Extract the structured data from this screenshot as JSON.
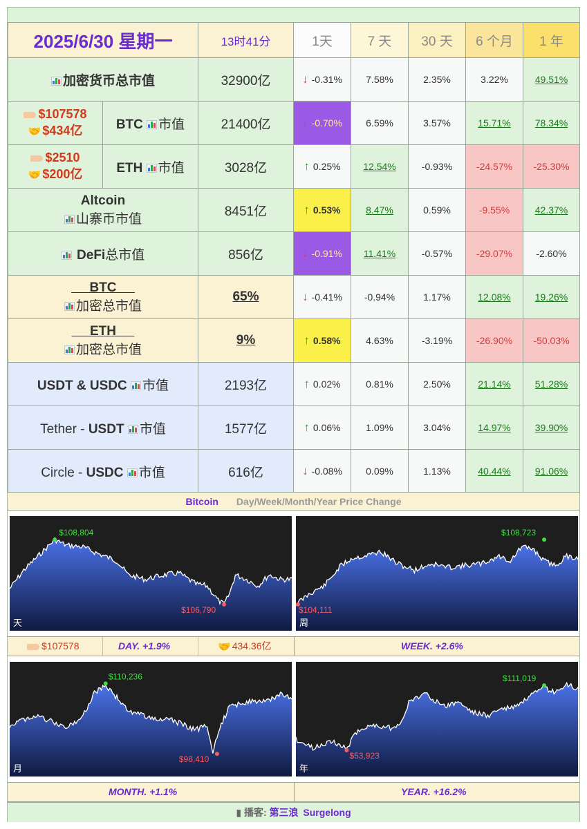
{
  "header": {
    "date": "2025/6/30 星期一",
    "time": "13时41分",
    "periods": [
      "1天",
      "7 天",
      "30 天",
      "6 个月",
      "1 年"
    ]
  },
  "rows": [
    {
      "id": "total",
      "label": "加密货币总市值",
      "mcap": "32900亿",
      "changes": [
        "-0.31%",
        "7.58%",
        "2.35%",
        "3.22%",
        "49.51%"
      ]
    },
    {
      "id": "btc",
      "price": "$107578",
      "volume": "$434亿",
      "label_coin": "BTC",
      "label_suffix": "市值",
      "mcap": "21400亿",
      "changes": [
        "-0.70%",
        "6.59%",
        "3.57%",
        "15.71%",
        "78.34%"
      ]
    },
    {
      "id": "eth",
      "price": "$2510",
      "volume": "$200亿",
      "label_coin": "ETH",
      "label_suffix": "市值",
      "mcap": "3028亿",
      "changes": [
        "0.25%",
        "12.54%",
        "-0.93%",
        "-24.57%",
        "-25.30%"
      ]
    },
    {
      "id": "alt",
      "label_top": "Altcoin",
      "label": "山寨币市值",
      "mcap": "8451亿",
      "changes": [
        "0.53%",
        "8.47%",
        "0.59%",
        "-9.55%",
        "42.37%"
      ]
    },
    {
      "id": "defi",
      "label_coin": "DeFi",
      "label_suffix": "总市值",
      "mcap": "856亿",
      "changes": [
        "-0.91%",
        "11.41%",
        "-0.57%",
        "-29.07%",
        "-2.60%"
      ]
    },
    {
      "id": "btcdom",
      "label_top": "BTC",
      "label": "加密总市值",
      "mcap": "65%",
      "changes": [
        "-0.41%",
        "-0.94%",
        "1.17%",
        "12.08%",
        "19.26%"
      ]
    },
    {
      "id": "ethdom",
      "label_top": "ETH",
      "label": "加密总市值",
      "mcap": "9%",
      "changes": [
        "0.58%",
        "4.63%",
        "-3.19%",
        "-26.90%",
        "-50.03%"
      ]
    },
    {
      "id": "stable",
      "label_coin": "USDT & USDC",
      "label_suffix": "市值",
      "mcap": "2193亿",
      "changes": [
        "0.02%",
        "0.81%",
        "2.50%",
        "21.14%",
        "51.28%"
      ]
    },
    {
      "id": "usdt",
      "label_pre": "Tether - ",
      "label_coin": "USDT",
      "label_suffix": "市值",
      "mcap": "1577亿",
      "changes": [
        "0.06%",
        "1.09%",
        "3.04%",
        "14.97%",
        "39.90%"
      ]
    },
    {
      "id": "usdc",
      "label_pre": "Circle - ",
      "label_coin": "USDC",
      "label_suffix": "市值",
      "mcap": "616亿",
      "changes": [
        "-0.08%",
        "0.09%",
        "1.13%",
        "40.44%",
        "91.06%"
      ]
    }
  ],
  "chart_section": {
    "title_left": "Bitcoin",
    "title_right": "Day/Week/Month/Year   Price Change"
  },
  "chart_data": [
    {
      "type": "area",
      "id": "day",
      "corner": "天",
      "high": "$108,804",
      "low": "$106,790"
    },
    {
      "type": "area",
      "id": "week",
      "corner": "周",
      "high": "$108,723",
      "low": "$104,111"
    },
    {
      "type": "area",
      "id": "month",
      "corner": "月",
      "high": "$110,236",
      "low": "$98,410"
    },
    {
      "type": "area",
      "id": "year",
      "corner": "年",
      "high": "$111,019",
      "low": "$53,923"
    }
  ],
  "strips": {
    "day": {
      "price": "$107578",
      "period": "DAY.   +1.9%",
      "volume": "434.36亿"
    },
    "week": {
      "period": "WEEK.   +2.6%"
    },
    "month": {
      "period": "MONTH.   +1.1%"
    },
    "year": {
      "period": "YEAR.   +16.2%"
    }
  },
  "footer": {
    "prefix": "播客:",
    "name": "第三浪",
    "name_en": "Surgelong"
  },
  "colors": {
    "up": "#2aa52a",
    "down": "#e04040",
    "accent": "#6a2bd0",
    "high_marker": "#3fe03f",
    "low_marker": "#ff5a5a"
  }
}
